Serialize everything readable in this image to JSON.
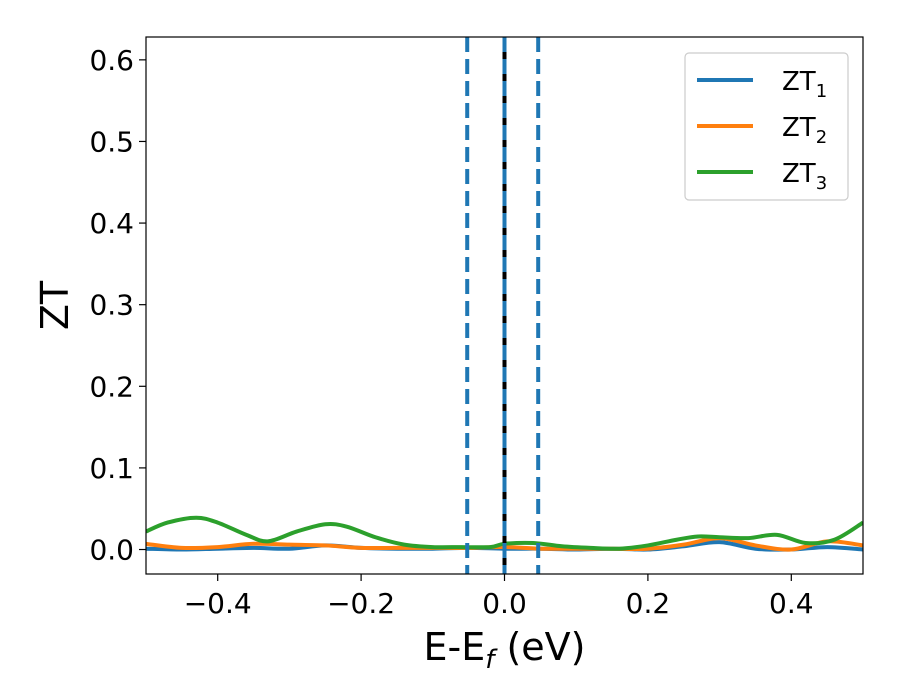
{
  "chart_data": {
    "type": "line",
    "title": "",
    "xlabel": "E-E",
    "xlabel_sub": "f",
    "xlabel_unit": " (eV)",
    "ylabel": "ZT",
    "xlim": [
      -0.5,
      0.5
    ],
    "ylim": [
      -0.03,
      0.628
    ],
    "xticks": [
      -0.4,
      -0.2,
      0.0,
      0.2,
      0.4
    ],
    "xtick_labels": [
      "−0.4",
      "−0.2",
      "0.0",
      "0.2",
      "0.4"
    ],
    "yticks": [
      0.0,
      0.1,
      0.2,
      0.3,
      0.4,
      0.5,
      0.6
    ],
    "ytick_labels": [
      "0.0",
      "0.1",
      "0.2",
      "0.3",
      "0.4",
      "0.5",
      "0.6"
    ],
    "grid": false,
    "legend_position": "top-right",
    "vlines": [
      {
        "x": -0.052,
        "style": "dashed",
        "color": "#1f77b4"
      },
      {
        "x": 0.0,
        "style": "solid",
        "color": "#000000"
      },
      {
        "x": 0.0,
        "style": "dashed",
        "color": "#1f77b4"
      },
      {
        "x": 0.047,
        "style": "dashed",
        "color": "#1f77b4"
      }
    ],
    "series": [
      {
        "name": "ZT",
        "name_sub": "1",
        "color": "#1f77b4",
        "x": [
          -0.5,
          -0.45,
          -0.4,
          -0.35,
          -0.3,
          -0.25,
          -0.2,
          -0.15,
          -0.1,
          -0.05,
          0.0,
          0.05,
          0.1,
          0.15,
          0.2,
          0.25,
          0.3,
          0.35,
          0.4,
          0.45,
          0.5
        ],
        "y": [
          0.001,
          0.0,
          0.001,
          0.002,
          0.001,
          0.005,
          0.002,
          0.001,
          0.001,
          0.002,
          0.001,
          0.001,
          0.0,
          0.001,
          0.0,
          0.004,
          0.009,
          0.001,
          0.0,
          0.003,
          0.0
        ]
      },
      {
        "name": "ZT",
        "name_sub": "2",
        "color": "#ff7f0e",
        "x": [
          -0.5,
          -0.45,
          -0.4,
          -0.35,
          -0.3,
          -0.25,
          -0.2,
          -0.15,
          -0.1,
          -0.05,
          0.0,
          0.05,
          0.1,
          0.15,
          0.2,
          0.25,
          0.3,
          0.35,
          0.4,
          0.45,
          0.5
        ],
        "y": [
          0.007,
          0.002,
          0.003,
          0.007,
          0.006,
          0.005,
          0.002,
          0.002,
          0.002,
          0.002,
          0.003,
          0.001,
          0.001,
          0.001,
          0.001,
          0.006,
          0.014,
          0.005,
          0.0,
          0.01,
          0.005
        ]
      },
      {
        "name": "ZT",
        "name_sub": "3",
        "color": "#2ca02c",
        "x": [
          -0.5,
          -0.47,
          -0.43,
          -0.4,
          -0.36,
          -0.33,
          -0.29,
          -0.25,
          -0.22,
          -0.18,
          -0.14,
          -0.1,
          -0.06,
          -0.02,
          0.0,
          0.04,
          0.08,
          0.12,
          0.16,
          0.2,
          0.24,
          0.27,
          0.3,
          0.34,
          0.38,
          0.42,
          0.46,
          0.5
        ],
        "y": [
          0.022,
          0.033,
          0.039,
          0.033,
          0.018,
          0.01,
          0.022,
          0.031,
          0.028,
          0.015,
          0.006,
          0.003,
          0.003,
          0.003,
          0.007,
          0.008,
          0.004,
          0.002,
          0.001,
          0.005,
          0.012,
          0.016,
          0.015,
          0.014,
          0.018,
          0.008,
          0.012,
          0.033
        ]
      }
    ]
  }
}
